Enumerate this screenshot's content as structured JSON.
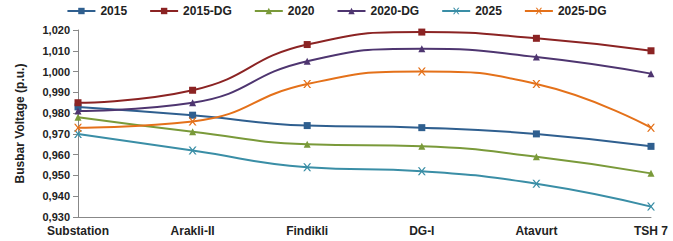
{
  "chart_data": {
    "type": "line",
    "y_label": "Busbar Voltage (p.u.)",
    "categories": [
      "Substation",
      "Arakli-II",
      "Findikli",
      "DG-I",
      "Atavurt",
      "TSH 7"
    ],
    "series": [
      {
        "name": "2015",
        "color": "#2f5f8f",
        "marker": "square",
        "values": [
          0.983,
          0.979,
          0.974,
          0.973,
          0.97,
          0.964
        ]
      },
      {
        "name": "2015-DG",
        "color": "#8b2323",
        "marker": "square",
        "values": [
          0.985,
          0.991,
          1.013,
          1.019,
          1.016,
          1.01
        ]
      },
      {
        "name": "2020",
        "color": "#7a9a3a",
        "marker": "triangle",
        "values": [
          0.978,
          0.971,
          0.965,
          0.964,
          0.959,
          0.951
        ]
      },
      {
        "name": "2020-DG",
        "color": "#4e3570",
        "marker": "triangle",
        "values": [
          0.981,
          0.985,
          1.005,
          1.011,
          1.007,
          0.999
        ]
      },
      {
        "name": "2025",
        "color": "#3a8ea6",
        "marker": "x",
        "values": [
          0.97,
          0.962,
          0.954,
          0.952,
          0.946,
          0.935
        ]
      },
      {
        "name": "2025-DG",
        "color": "#e4711a",
        "marker": "x",
        "values": [
          0.973,
          0.976,
          0.994,
          1.0,
          0.994,
          0.973
        ]
      }
    ],
    "ylim": [
      0.93,
      1.02
    ],
    "yticks": [
      {
        "value": 0.93,
        "label": "0,930"
      },
      {
        "value": 0.94,
        "label": "0,940"
      },
      {
        "value": 0.95,
        "label": "0,950"
      },
      {
        "value": 0.96,
        "label": "0,960"
      },
      {
        "value": 0.97,
        "label": "0,970"
      },
      {
        "value": 0.98,
        "label": "0,980"
      },
      {
        "value": 0.99,
        "label": "0,990"
      },
      {
        "value": 1.0,
        "label": "1,000"
      },
      {
        "value": 1.01,
        "label": "1,010"
      },
      {
        "value": 1.02,
        "label": "1,020"
      }
    ],
    "grid": false,
    "legend": "top"
  }
}
